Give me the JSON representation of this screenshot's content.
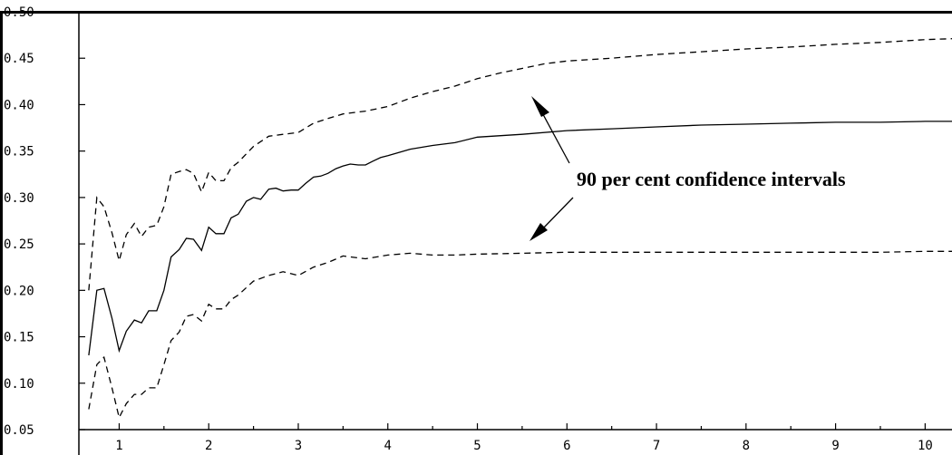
{
  "chart_data": {
    "type": "line",
    "title": "",
    "xlabel": "",
    "ylabel": "",
    "xlim": [
      0.55,
      10.3
    ],
    "ylim": [
      0.05,
      0.5
    ],
    "grid": false,
    "legend": "none",
    "x_ticks": [
      1,
      2,
      3,
      4,
      5,
      6,
      7,
      8,
      9,
      10
    ],
    "x_tick_labels": [
      "1",
      "2",
      "3",
      "4",
      "5",
      "6",
      "7",
      "8",
      "9",
      "10"
    ],
    "y_ticks": [
      0.05,
      0.1,
      0.15,
      0.2,
      0.25,
      0.3,
      0.35,
      0.4,
      0.45,
      0.5
    ],
    "y_tick_labels": [
      "0.05",
      "0.10",
      "0.15",
      "0.20",
      "0.25",
      "0.30",
      "0.35",
      "0.40",
      "0.45",
      "0.50"
    ],
    "series": [
      {
        "style": "solid",
        "color": "#000000",
        "x": [
          0.66,
          0.75,
          0.83,
          0.92,
          1.0,
          1.08,
          1.17,
          1.25,
          1.33,
          1.42,
          1.5,
          1.58,
          1.67,
          1.75,
          1.83,
          1.92,
          2.0,
          2.08,
          2.17,
          2.25,
          2.33,
          2.42,
          2.5,
          2.58,
          2.67,
          2.75,
          2.83,
          2.92,
          3.0,
          3.08,
          3.17,
          3.25,
          3.33,
          3.42,
          3.5,
          3.58,
          3.67,
          3.75,
          3.83,
          3.92,
          4.0,
          4.25,
          4.5,
          4.75,
          5.0,
          5.5,
          6.0,
          6.5,
          7.0,
          7.5,
          8.0,
          8.5,
          9.0,
          9.5,
          10.0,
          10.3
        ],
        "y": [
          0.13,
          0.2,
          0.202,
          0.17,
          0.135,
          0.156,
          0.168,
          0.165,
          0.178,
          0.178,
          0.2,
          0.236,
          0.244,
          0.256,
          0.255,
          0.243,
          0.268,
          0.261,
          0.261,
          0.278,
          0.282,
          0.296,
          0.3,
          0.298,
          0.309,
          0.31,
          0.307,
          0.308,
          0.308,
          0.315,
          0.322,
          0.323,
          0.326,
          0.331,
          0.334,
          0.336,
          0.335,
          0.335,
          0.339,
          0.343,
          0.345,
          0.352,
          0.356,
          0.359,
          0.365,
          0.368,
          0.372,
          0.374,
          0.376,
          0.378,
          0.379,
          0.38,
          0.381,
          0.381,
          0.382,
          0.382
        ]
      },
      {
        "style": "dashed",
        "color": "#000000",
        "x": [
          0.66,
          0.75,
          0.83,
          0.92,
          1.0,
          1.08,
          1.17,
          1.25,
          1.33,
          1.42,
          1.5,
          1.58,
          1.67,
          1.75,
          1.83,
          1.92,
          2.0,
          2.08,
          2.17,
          2.25,
          2.33,
          2.5,
          2.67,
          2.83,
          3.0,
          3.17,
          3.33,
          3.5,
          3.75,
          4.0,
          4.25,
          4.5,
          4.75,
          5.0,
          5.25,
          5.5,
          5.75,
          6.0,
          6.5,
          7.0,
          7.5,
          8.0,
          8.5,
          9.0,
          9.5,
          10.0,
          10.3
        ],
        "y": [
          0.2,
          0.3,
          0.29,
          0.262,
          0.232,
          0.26,
          0.272,
          0.258,
          0.268,
          0.27,
          0.29,
          0.325,
          0.328,
          0.33,
          0.326,
          0.306,
          0.327,
          0.318,
          0.318,
          0.332,
          0.338,
          0.355,
          0.366,
          0.368,
          0.37,
          0.38,
          0.385,
          0.39,
          0.393,
          0.398,
          0.407,
          0.414,
          0.42,
          0.428,
          0.434,
          0.439,
          0.444,
          0.447,
          0.45,
          0.454,
          0.457,
          0.46,
          0.462,
          0.465,
          0.467,
          0.47,
          0.471
        ]
      },
      {
        "style": "dashed",
        "color": "#000000",
        "x": [
          0.66,
          0.75,
          0.83,
          0.92,
          1.0,
          1.08,
          1.17,
          1.25,
          1.33,
          1.42,
          1.5,
          1.58,
          1.67,
          1.75,
          1.83,
          1.92,
          2.0,
          2.08,
          2.17,
          2.25,
          2.33,
          2.5,
          2.67,
          2.83,
          3.0,
          3.17,
          3.33,
          3.5,
          3.75,
          4.0,
          4.25,
          4.5,
          4.75,
          5.0,
          5.5,
          6.0,
          6.5,
          7.0,
          7.5,
          8.0,
          8.5,
          9.0,
          9.5,
          10.0,
          10.3
        ],
        "y": [
          0.072,
          0.12,
          0.128,
          0.095,
          0.063,
          0.078,
          0.088,
          0.088,
          0.095,
          0.095,
          0.12,
          0.146,
          0.155,
          0.172,
          0.174,
          0.167,
          0.185,
          0.18,
          0.18,
          0.19,
          0.195,
          0.21,
          0.216,
          0.22,
          0.216,
          0.225,
          0.23,
          0.237,
          0.234,
          0.238,
          0.24,
          0.238,
          0.238,
          0.239,
          0.24,
          0.241,
          0.241,
          0.241,
          0.241,
          0.241,
          0.241,
          0.241,
          0.241,
          0.242,
          0.242
        ]
      }
    ],
    "annotations": [
      {
        "text": "90 per cent confidence intervals",
        "position": "right of curves, between upper and lower bands",
        "arrows_to": [
          "upper dashed band",
          "lower dashed band"
        ]
      }
    ]
  }
}
